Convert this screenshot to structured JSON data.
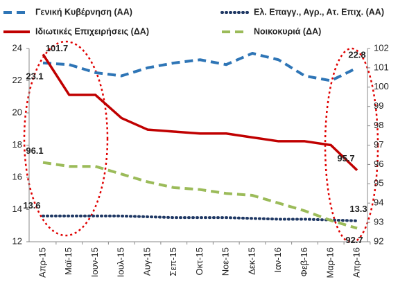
{
  "chart_data": {
    "type": "line",
    "categories": [
      "Απρ-15",
      "Μαϊ-15",
      "Ιουν-15",
      "Ιουλ-15",
      "Αυγ-15",
      "Σεπ-15",
      "Οκτ-15",
      "Νοε-15",
      "Δεκ-15",
      "Ιαν-16",
      "Φεβ-16",
      "Μαρ-16",
      "Απρ-16"
    ],
    "ylim": [
      12,
      24
    ],
    "yticks": [
      12,
      14,
      16,
      18,
      20,
      22,
      24
    ],
    "y2lim": [
      92,
      102
    ],
    "y2ticks": [
      92,
      93,
      94,
      95,
      96,
      97,
      98,
      99,
      100,
      101,
      102
    ],
    "grid": false,
    "series": [
      {
        "name": "Γενική Κυβέρνηση (ΑΑ)",
        "color": "#2e75b6",
        "style": "dashed",
        "axis": "y",
        "values": [
          23.1,
          23.0,
          22.5,
          22.3,
          22.8,
          23.1,
          23.3,
          23.0,
          23.7,
          23.3,
          22.3,
          22.0,
          22.8
        ],
        "value_labels": [
          "23.1",
          null,
          null,
          null,
          null,
          null,
          null,
          null,
          null,
          null,
          null,
          null,
          "22.8"
        ]
      },
      {
        "name": "Ελ. Επαγγ., Αγρ., Ατ. Επιχ. (ΑΑ)",
        "color": "#1f3864",
        "style": "dotted",
        "axis": "y",
        "values": [
          13.6,
          13.6,
          13.6,
          13.6,
          13.55,
          13.5,
          13.5,
          13.5,
          13.45,
          13.4,
          13.4,
          13.35,
          13.3
        ],
        "value_labels": [
          "13.6",
          null,
          null,
          null,
          null,
          null,
          null,
          null,
          null,
          null,
          null,
          null,
          "13.3"
        ]
      },
      {
        "name": "Ιδιωτικές Επιχειρήσεις (ΔΑ)",
        "color": "#c00000",
        "style": "solid",
        "axis": "y2",
        "values": [
          101.7,
          99.6,
          99.6,
          98.4,
          97.8,
          97.7,
          97.6,
          97.6,
          97.4,
          97.2,
          97.2,
          97.0,
          95.7
        ],
        "value_labels": [
          "101.7",
          null,
          null,
          null,
          null,
          null,
          null,
          null,
          null,
          null,
          null,
          null,
          "95.7"
        ]
      },
      {
        "name": "Νοικοκυριά (ΔΑ)",
        "color": "#9bbb59",
        "style": "dashed",
        "axis": "y2",
        "values": [
          96.1,
          95.9,
          95.9,
          95.5,
          95.1,
          94.8,
          94.7,
          94.5,
          94.4,
          94.0,
          93.6,
          93.1,
          92.7
        ],
        "value_labels": [
          "96.1",
          null,
          null,
          null,
          null,
          null,
          null,
          null,
          null,
          null,
          null,
          null,
          "92.7"
        ]
      }
    ]
  }
}
